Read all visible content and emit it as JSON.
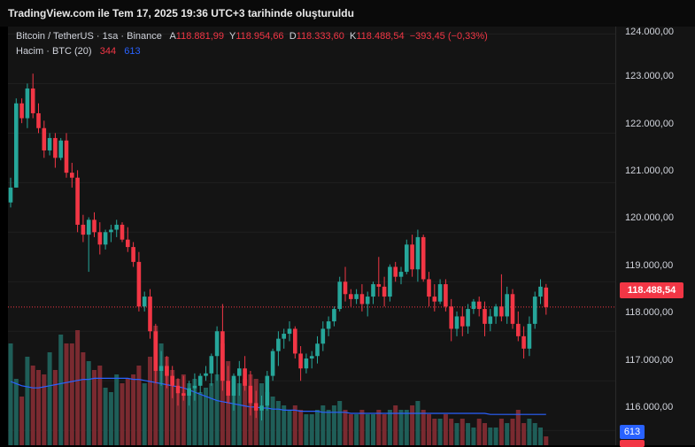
{
  "title_bar": {
    "text": "TradingView.com ile Tem 17, 2025 19:36 UTC+3 tarihinde oluşturuldu"
  },
  "legend": {
    "symbol": "Bitcoin / TetherUS · 1sa · Binance",
    "open_label": "A",
    "open": "118.881,99",
    "high_label": "Y",
    "high": "118.954,66",
    "low_label": "D",
    "low": "118.333,60",
    "close_label": "K",
    "close": "118.488,54",
    "change": "−393,45 (−0,33%)",
    "volume_label": "Hacim · BTC (20)",
    "volume_value": "344",
    "volume_ma": "613"
  },
  "price_axis": {
    "ticks": [
      "124.000,00",
      "123.000,00",
      "122.000,00",
      "121.000,00",
      "120.000,00",
      "119.000,00",
      "118.000,00",
      "117.000,00",
      "116.000,00"
    ],
    "last_price": "118.488,54",
    "volume_ma_tag": "613"
  },
  "colors": {
    "up": "#26a69a",
    "down": "#f23645",
    "ma": "#2962ff",
    "background": "#141414"
  },
  "chart_data": {
    "type": "candlestick",
    "symbol": "BTCUSDT",
    "interval": "1h",
    "ylim": [
      115700,
      124150
    ],
    "last_price": 118488.54,
    "candles": [
      [
        120600,
        121100,
        120500,
        120900,
        230
      ],
      [
        120900,
        122700,
        120900,
        122600,
        150
      ],
      [
        122600,
        122700,
        122200,
        122300,
        110
      ],
      [
        122300,
        123000,
        122100,
        122900,
        200
      ],
      [
        122900,
        123200,
        122300,
        122400,
        180
      ],
      [
        122400,
        122600,
        122000,
        122100,
        170
      ],
      [
        122100,
        122250,
        121500,
        121650,
        160
      ],
      [
        121650,
        122000,
        121550,
        121900,
        210
      ],
      [
        121900,
        122000,
        121300,
        121500,
        170
      ],
      [
        121500,
        121900,
        121450,
        121850,
        250
      ],
      [
        121850,
        122000,
        121100,
        121200,
        230
      ],
      [
        121200,
        121400,
        120900,
        121100,
        230
      ],
      [
        121100,
        121250,
        120000,
        120150,
        260
      ],
      [
        120150,
        120350,
        119800,
        119950,
        210
      ],
      [
        119950,
        120300,
        119200,
        120250,
        190
      ],
      [
        120250,
        120400,
        119900,
        120000,
        170
      ],
      [
        120000,
        120200,
        119550,
        119750,
        180
      ],
      [
        119750,
        120050,
        119650,
        120000,
        130
      ],
      [
        120000,
        120150,
        119800,
        120050,
        120
      ],
      [
        120050,
        120250,
        119900,
        120150,
        160
      ],
      [
        120150,
        120200,
        119800,
        119850,
        140
      ],
      [
        119850,
        120100,
        119600,
        119700,
        150
      ],
      [
        119700,
        119800,
        119300,
        119400,
        160
      ],
      [
        119400,
        119600,
        118400,
        118500,
        180
      ],
      [
        118500,
        118800,
        118400,
        118700,
        140
      ],
      [
        118700,
        118850,
        117850,
        118000,
        200
      ],
      [
        118000,
        118150,
        116950,
        117200,
        270
      ],
      [
        117200,
        117600,
        116900,
        117300,
        230
      ],
      [
        117300,
        117500,
        116850,
        117100,
        200
      ],
      [
        117100,
        117300,
        116650,
        116900,
        170
      ],
      [
        116900,
        117050,
        116500,
        116750,
        150
      ],
      [
        116750,
        117100,
        116600,
        116700,
        160
      ],
      [
        116700,
        117000,
        116500,
        116850,
        140
      ],
      [
        116850,
        117150,
        116600,
        116900,
        150
      ],
      [
        116900,
        117150,
        116750,
        117100,
        120
      ],
      [
        117100,
        117300,
        117000,
        117150,
        130
      ],
      [
        117150,
        117550,
        116900,
        117500,
        140
      ],
      [
        117500,
        118100,
        117000,
        118000,
        160
      ],
      [
        118000,
        118550,
        116800,
        117000,
        230
      ],
      [
        117000,
        117300,
        116550,
        116700,
        190
      ],
      [
        116700,
        117150,
        116400,
        117100,
        150
      ],
      [
        117100,
        117400,
        116700,
        117250,
        140
      ],
      [
        117250,
        117500,
        116800,
        116900,
        150
      ],
      [
        116900,
        117200,
        116300,
        116550,
        160
      ],
      [
        116550,
        116800,
        116250,
        116400,
        150
      ],
      [
        116400,
        116700,
        116200,
        116500,
        140
      ],
      [
        116500,
        117200,
        116400,
        117100,
        120
      ],
      [
        117100,
        117650,
        117000,
        117600,
        110
      ],
      [
        117600,
        118000,
        117300,
        117850,
        100
      ],
      [
        117850,
        118050,
        117650,
        117950,
        90
      ],
      [
        117950,
        118200,
        117800,
        118050,
        80
      ],
      [
        118050,
        118100,
        117450,
        117550,
        90
      ],
      [
        117550,
        117700,
        117000,
        117250,
        80
      ],
      [
        117250,
        117550,
        117150,
        117450,
        70
      ],
      [
        117450,
        117600,
        117250,
        117500,
        70
      ],
      [
        117500,
        117900,
        117350,
        117750,
        80
      ],
      [
        117750,
        118200,
        117600,
        118050,
        90
      ],
      [
        118050,
        118300,
        117900,
        118200,
        80
      ],
      [
        118200,
        118500,
        118100,
        118450,
        90
      ],
      [
        118450,
        119100,
        118400,
        119000,
        100
      ],
      [
        119000,
        119300,
        118600,
        118750,
        80
      ],
      [
        118750,
        118850,
        118500,
        118650,
        70
      ],
      [
        118650,
        118850,
        118550,
        118750,
        70
      ],
      [
        118750,
        118950,
        118400,
        118550,
        80
      ],
      [
        118550,
        118800,
        118300,
        118700,
        70
      ],
      [
        118700,
        119000,
        118550,
        118950,
        70
      ],
      [
        118950,
        119500,
        118700,
        118900,
        80
      ],
      [
        118900,
        119100,
        118500,
        118700,
        70
      ],
      [
        118700,
        119350,
        118600,
        119300,
        80
      ],
      [
        119300,
        119400,
        119000,
        119100,
        90
      ],
      [
        119100,
        119300,
        118950,
        119200,
        80
      ],
      [
        119200,
        119850,
        119150,
        119750,
        80
      ],
      [
        119750,
        119950,
        119100,
        119250,
        90
      ],
      [
        119250,
        120050,
        119000,
        119900,
        100
      ],
      [
        119900,
        119950,
        119000,
        119050,
        80
      ],
      [
        119050,
        119200,
        118500,
        118700,
        70
      ],
      [
        118700,
        118950,
        118400,
        118600,
        60
      ],
      [
        118600,
        119050,
        118550,
        118950,
        60
      ],
      [
        118950,
        119050,
        118400,
        118500,
        70
      ],
      [
        118500,
        118650,
        117800,
        118050,
        60
      ],
      [
        118050,
        118400,
        117900,
        118300,
        50
      ],
      [
        118300,
        118500,
        117900,
        118100,
        60
      ],
      [
        118100,
        118550,
        117950,
        118450,
        50
      ],
      [
        118450,
        118650,
        118350,
        118600,
        40
      ],
      [
        118600,
        118700,
        118300,
        118450,
        60
      ],
      [
        118450,
        118600,
        117900,
        118150,
        50
      ],
      [
        118150,
        118450,
        118000,
        118300,
        40
      ],
      [
        118300,
        118550,
        118150,
        118500,
        40
      ],
      [
        118500,
        119150,
        118200,
        118300,
        60
      ],
      [
        118300,
        118900,
        118150,
        118750,
        50
      ],
      [
        118750,
        118850,
        118050,
        118150,
        60
      ],
      [
        118150,
        118400,
        117800,
        117900,
        80
      ],
      [
        117900,
        118100,
        117450,
        117650,
        50
      ],
      [
        117650,
        118300,
        117500,
        118150,
        60
      ],
      [
        118150,
        118800,
        118050,
        118700,
        50
      ],
      [
        118700,
        119050,
        118550,
        118900,
        40
      ],
      [
        118882,
        118955,
        118334,
        118489,
        20
      ]
    ],
    "volume_ma": [
      60,
      58,
      56,
      55,
      54,
      54,
      55,
      56,
      57,
      58,
      59,
      60,
      61,
      62,
      62,
      63,
      63,
      63,
      63,
      63,
      63,
      63,
      62,
      62,
      61,
      60,
      59,
      58,
      57,
      56,
      55,
      54,
      52,
      50,
      48,
      46,
      44,
      42,
      41,
      40,
      39,
      38,
      37,
      36,
      36,
      35,
      35,
      34,
      34,
      33,
      33,
      33,
      32,
      32,
      32,
      32,
      31,
      31,
      31,
      31,
      31,
      30,
      30,
      30,
      30,
      30,
      30,
      30,
      30,
      30,
      30,
      30,
      30,
      30,
      30,
      30,
      30,
      30,
      30,
      30,
      30,
      30,
      30,
      30,
      30,
      30,
      29,
      29,
      29,
      29,
      29,
      29,
      29,
      29,
      29,
      29,
      29
    ]
  }
}
